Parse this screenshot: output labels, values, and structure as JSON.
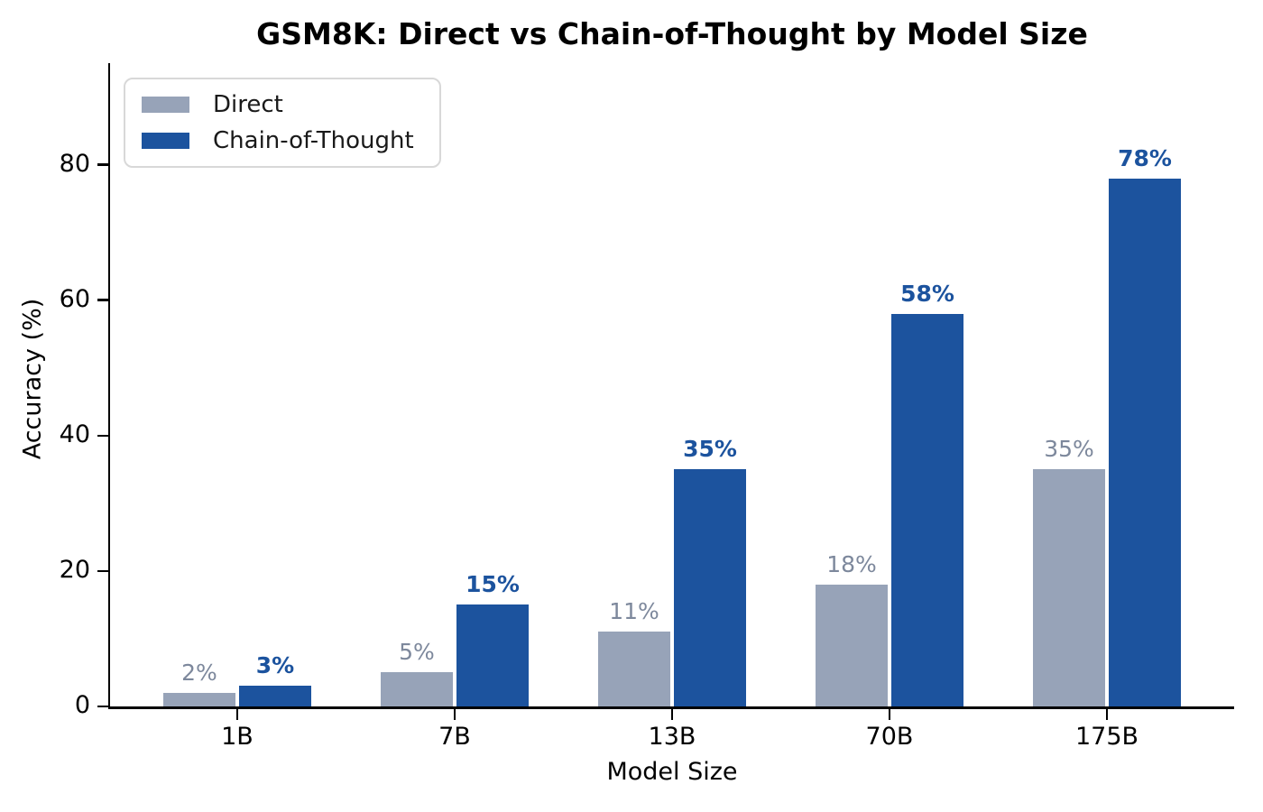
{
  "figure": {
    "background": "#ffffff"
  },
  "chart_data": {
    "type": "bar",
    "title": "GSM8K: Direct vs Chain-of-Thought by Model Size",
    "xlabel": "Model Size",
    "ylabel": "Accuracy (%)",
    "categories": [
      "1B",
      "7B",
      "13B",
      "70B",
      "175B"
    ],
    "series": [
      {
        "name": "Direct",
        "values": [
          2,
          5,
          11,
          18,
          35
        ],
        "color": "#97a3b8",
        "label_color": "#7d889c",
        "label_weight": "normal"
      },
      {
        "name": "Chain-of-Thought",
        "values": [
          3,
          15,
          35,
          58,
          78
        ],
        "color": "#1c539e",
        "label_color": "#1c539e",
        "label_weight": "bold"
      }
    ],
    "value_suffix": "%",
    "yticks": [
      0,
      20,
      40,
      60,
      80
    ],
    "ylim": [
      0,
      95
    ],
    "grid": false,
    "legend_position": "upper-left",
    "axis_color": "#000000",
    "tick_label_color": "#000000"
  }
}
